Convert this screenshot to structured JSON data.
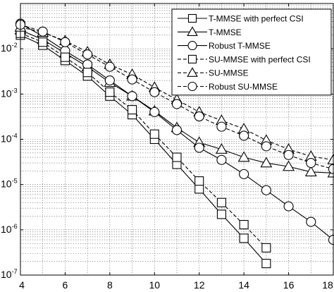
{
  "chart_data": {
    "type": "line",
    "title": "",
    "xlabel": "",
    "ylabel": "",
    "xlim": [
      4,
      18
    ],
    "ylim": [
      1e-07,
      0.1
    ],
    "yscale": "log",
    "grid": true,
    "legend_position": "top-right",
    "x_ticks": [
      "4",
      "6",
      "8",
      "10",
      "12",
      "14",
      "16",
      "18"
    ],
    "y_ticks": [
      {
        "base": "10",
        "exp": "-2",
        "value": 0.01
      },
      {
        "base": "10",
        "exp": "-3",
        "value": 0.001
      },
      {
        "base": "10",
        "exp": "-4",
        "value": 0.0001
      },
      {
        "base": "10",
        "exp": "-5",
        "value": 1e-05
      },
      {
        "base": "10",
        "exp": "-6",
        "value": 1e-06
      },
      {
        "base": "10",
        "exp": "-7",
        "value": 1e-07
      }
    ],
    "series": [
      {
        "name": "T-MMSE with perfect CSI",
        "marker": "square",
        "dashed": false,
        "x": [
          4,
          5,
          6,
          7,
          8,
          9,
          10,
          11,
          12,
          13,
          14,
          15
        ],
        "y": [
          0.02,
          0.012,
          0.0055,
          0.0025,
          0.0009,
          0.00035,
          0.0001,
          2.8e-05,
          8e-06,
          2.2e-06,
          6.5e-07,
          1.8e-07
        ]
      },
      {
        "name": "T-MMSE",
        "marker": "triangle",
        "dashed": false,
        "x": [
          4,
          5,
          6,
          7,
          8,
          9,
          10,
          11,
          12,
          13,
          14,
          15,
          16,
          17,
          18
        ],
        "y": [
          0.026,
          0.016,
          0.008,
          0.004,
          0.0018,
          0.0009,
          0.00042,
          0.00018,
          8.5e-05,
          6e-05,
          4e-05,
          3e-05,
          2.5e-05,
          1.9e-05,
          1.8e-05
        ]
      },
      {
        "name": "Robust T-MMSE",
        "marker": "circle",
        "dashed": false,
        "x": [
          4,
          5,
          6,
          7,
          8,
          9,
          10,
          11,
          12,
          13,
          14,
          15,
          16,
          17,
          18
        ],
        "y": [
          0.036,
          0.019,
          0.009,
          0.0045,
          0.002,
          0.0009,
          0.0004,
          0.00016,
          6.5e-05,
          3.5e-05,
          1.7e-05,
          7.5e-06,
          3.3e-06,
          1.5e-06,
          6e-07
        ]
      },
      {
        "name": "SU-MMSE with perfect CSI",
        "marker": "square",
        "dashed": true,
        "x": [
          4,
          5,
          6,
          7,
          8,
          9,
          10,
          11,
          12,
          13,
          14,
          15
        ],
        "y": [
          0.022,
          0.014,
          0.0065,
          0.003,
          0.0011,
          0.00045,
          0.00013,
          4e-05,
          1.2e-05,
          4e-06,
          1.3e-06,
          4e-07
        ]
      },
      {
        "name": "SU-MMSE",
        "marker": "triangle",
        "dashed": true,
        "x": [
          4,
          5,
          6,
          7,
          8,
          9,
          10,
          11,
          12,
          13,
          14,
          15,
          16,
          17,
          18
        ],
        "y": [
          0.03,
          0.023,
          0.015,
          0.0085,
          0.0045,
          0.0027,
          0.0014,
          0.00075,
          0.0004,
          0.00026,
          0.00017,
          9.5e-05,
          6e-05,
          4.2e-05,
          3.5e-05
        ]
      },
      {
        "name": "Robust SU-MMSE",
        "marker": "circle",
        "dashed": true,
        "x": [
          4,
          5,
          6,
          7,
          8,
          9,
          10,
          11,
          12,
          13,
          14,
          15,
          16,
          17,
          18
        ],
        "y": [
          0.034,
          0.024,
          0.014,
          0.0075,
          0.004,
          0.0021,
          0.0011,
          0.0006,
          0.00032,
          0.00019,
          0.00012,
          7e-05,
          4.5e-05,
          3e-05,
          2.2e-05
        ]
      }
    ]
  }
}
